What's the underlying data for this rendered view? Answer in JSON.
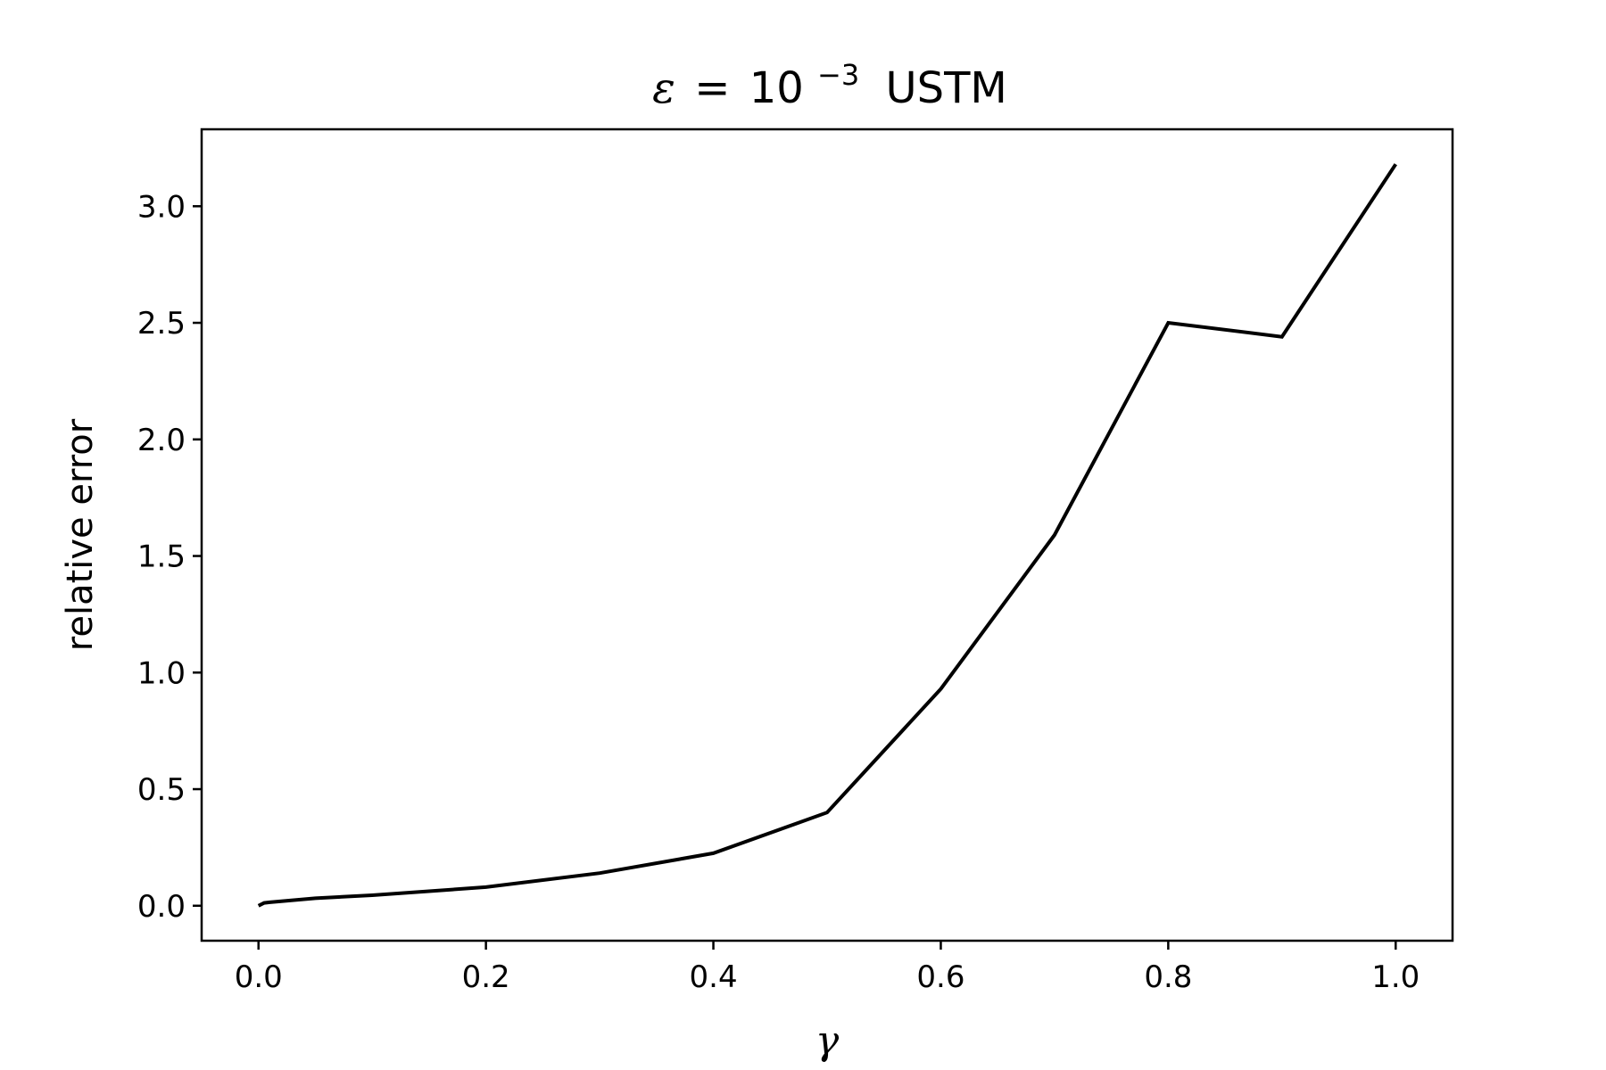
{
  "chart_data": {
    "type": "line",
    "title": {
      "symbol": "ε",
      "equals": "=",
      "base": "10",
      "exponent": "−3",
      "suffix": "USTM"
    },
    "xlabel": "γ",
    "ylabel": "relative error",
    "xlim": [
      -0.05,
      1.05
    ],
    "ylim": [
      -0.15,
      3.33
    ],
    "xticks": [
      0.0,
      0.2,
      0.4,
      0.6,
      0.8,
      1.0
    ],
    "xtick_labels": [
      "0.0",
      "0.2",
      "0.4",
      "0.6",
      "0.8",
      "1.0"
    ],
    "yticks": [
      0.0,
      0.5,
      1.0,
      1.5,
      2.0,
      2.5,
      3.0
    ],
    "ytick_labels": [
      "0.0",
      "0.5",
      "1.0",
      "1.5",
      "2.0",
      "2.5",
      "3.0"
    ],
    "grid": false,
    "series": [
      {
        "color": "#000000",
        "x": [
          0.0,
          0.005,
          0.01,
          0.05,
          0.1,
          0.2,
          0.3,
          0.4,
          0.5,
          0.6,
          0.7,
          0.8,
          0.9,
          1.0
        ],
        "y": [
          0.0,
          0.012,
          0.015,
          0.032,
          0.045,
          0.08,
          0.14,
          0.225,
          0.4,
          0.93,
          1.59,
          2.5,
          2.44,
          3.18
        ]
      }
    ]
  }
}
